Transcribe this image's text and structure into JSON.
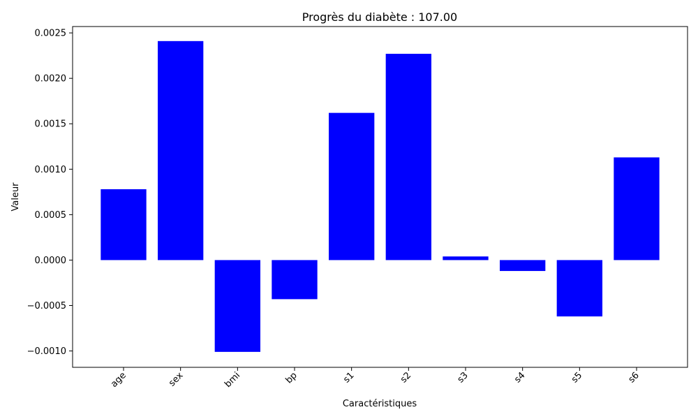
{
  "chart_data": {
    "type": "bar",
    "title": "Progrès du diabète : 107.00",
    "xlabel": "Caractéristiques",
    "ylabel": "Valeur",
    "categories": [
      "age",
      "sex",
      "bmi",
      "bp",
      "s1",
      "s2",
      "s3",
      "s4",
      "s5",
      "s6"
    ],
    "values": [
      0.00078,
      0.00241,
      -0.00101,
      -0.00043,
      0.00162,
      0.00227,
      4e-05,
      -0.00012,
      -0.00062,
      0.00113
    ],
    "ylim": [
      -0.00118,
      0.00257
    ],
    "yticks": [
      -0.001,
      -0.0005,
      0.0,
      0.0005,
      0.001,
      0.0015,
      0.002,
      0.0025
    ],
    "ytick_labels": [
      "−0.0010",
      "−0.0005",
      "0.0000",
      "0.0005",
      "0.0010",
      "0.0015",
      "0.0020",
      "0.0025"
    ],
    "bar_color": "#0000ff",
    "grid": false,
    "xtick_rotation": "45 degrees"
  }
}
